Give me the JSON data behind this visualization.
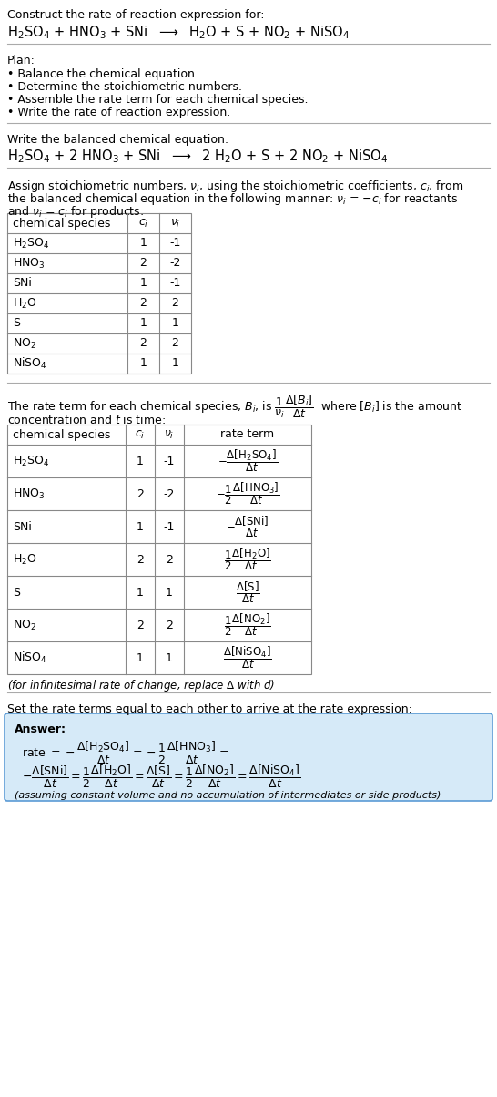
{
  "title_line1": "Construct the rate of reaction expression for:",
  "plan_items": [
    "• Balance the chemical equation.",
    "• Determine the stoichiometric numbers.",
    "• Assemble the rate term for each chemical species.",
    "• Write the rate of reaction expression."
  ],
  "table1_rows_species": [
    "H_2SO_4",
    "HNO_3",
    "SNi",
    "H_2O",
    "S",
    "NO_2",
    "NiSO_4"
  ],
  "table1_rows_ci": [
    "1",
    "2",
    "1",
    "2",
    "1",
    "2",
    "1"
  ],
  "table1_rows_vi": [
    "-1",
    "-2",
    "-1",
    "2",
    "1",
    "2",
    "1"
  ],
  "table2_rows_species": [
    "H_2SO_4",
    "HNO_3",
    "SNi",
    "H_2O",
    "S",
    "NO_2",
    "NiSO_4"
  ],
  "table2_rows_ci": [
    "1",
    "2",
    "1",
    "2",
    "1",
    "2",
    "1"
  ],
  "table2_rows_vi": [
    "-1",
    "-2",
    "-1",
    "2",
    "1",
    "2",
    "1"
  ],
  "answer_box_color": "#d6eaf8",
  "answer_border_color": "#5b9bd5",
  "bg_color": "#ffffff",
  "table_border_color": "#888888"
}
